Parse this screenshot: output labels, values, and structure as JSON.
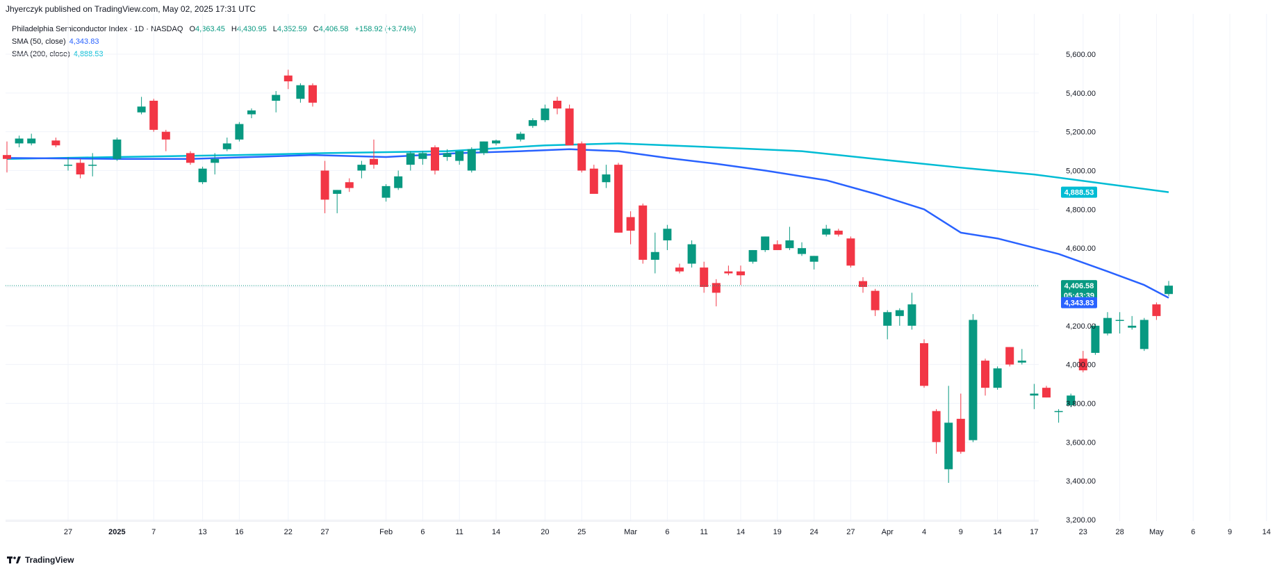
{
  "header": {
    "published": "Jhyerczyk published on TradingView.com, May 02, 2025 17:31 UTC"
  },
  "legend": {
    "symbol": "Philadelphia Semiconductor Index · 1D · NASDAQ",
    "o_label": "O",
    "o_value": "4,363.45",
    "h_label": "H",
    "h_value": "4,430.95",
    "l_label": "L",
    "l_value": "4,352.59",
    "c_label": "C",
    "c_value": "4,406.58",
    "change": "+158.92 (+3.74%)",
    "sma50_label": "SMA (50, close)",
    "sma50_value": "4,343.83",
    "sma200_label": "SMA (200, close)",
    "sma200_value": "4,888.53"
  },
  "footer": {
    "brand": "TradingView",
    "logo_icon": "tradingview-logo-icon"
  },
  "colors": {
    "up": "#089981",
    "down": "#f23645",
    "sma50": "#2962ff",
    "sma200": "#00bcd4",
    "grid": "#f0f3fa"
  },
  "chart_data": {
    "type": "candlestick",
    "title": "Philadelphia Semiconductor Index · 1D · NASDAQ",
    "ylim": [
      3150,
      5750
    ],
    "y_ticks": [
      3200,
      3400,
      3600,
      3800,
      4000,
      4200,
      4400,
      4600,
      4800,
      5000,
      5200,
      5400,
      5600
    ],
    "y_tick_labels": [
      "3,200.00",
      "3,400.00",
      "3,600.00",
      "3,800.00",
      "4,000.00",
      "4,200.00",
      "4,400.00",
      "4,600.00",
      "4,800.00",
      "5,000.00",
      "5,200.00",
      "5,400.00",
      "5,600.00"
    ],
    "x_ticks": [
      {
        "label": "27",
        "date": "2024-12-27"
      },
      {
        "label": "2025",
        "date": "2025-01-02"
      },
      {
        "label": "7",
        "date": "2025-01-07"
      },
      {
        "label": "13",
        "date": "2025-01-13"
      },
      {
        "label": "16",
        "date": "2025-01-16"
      },
      {
        "label": "22",
        "date": "2025-01-22"
      },
      {
        "label": "27",
        "date": "2025-01-27"
      },
      {
        "label": "Feb",
        "date": "2025-02-03"
      },
      {
        "label": "6",
        "date": "2025-02-06"
      },
      {
        "label": "11",
        "date": "2025-02-11"
      },
      {
        "label": "14",
        "date": "2025-02-14"
      },
      {
        "label": "20",
        "date": "2025-02-20"
      },
      {
        "label": "25",
        "date": "2025-02-25"
      },
      {
        "label": "Mar",
        "date": "2025-03-03"
      },
      {
        "label": "6",
        "date": "2025-03-06"
      },
      {
        "label": "11",
        "date": "2025-03-11"
      },
      {
        "label": "14",
        "date": "2025-03-14"
      },
      {
        "label": "19",
        "date": "2025-03-19"
      },
      {
        "label": "24",
        "date": "2025-03-24"
      },
      {
        "label": "27",
        "date": "2025-03-27"
      },
      {
        "label": "Apr",
        "date": "2025-04-01"
      },
      {
        "label": "4",
        "date": "2025-04-04"
      },
      {
        "label": "9",
        "date": "2025-04-09"
      },
      {
        "label": "14",
        "date": "2025-04-14"
      },
      {
        "label": "17",
        "date": "2025-04-17"
      },
      {
        "label": "23",
        "date": "2025-04-23"
      },
      {
        "label": "28",
        "date": "2025-04-28"
      },
      {
        "label": "May",
        "date": "2025-05-01"
      },
      {
        "label": "6",
        "date": "2025-05-06"
      },
      {
        "label": "9",
        "date": "2025-05-09"
      },
      {
        "label": "14",
        "date": "2025-05-14"
      }
    ],
    "candles": [
      {
        "date": "2024-12-20",
        "o": 5080,
        "h": 5150,
        "l": 4990,
        "c": 5060
      },
      {
        "date": "2024-12-23",
        "o": 5140,
        "h": 5180,
        "l": 5120,
        "c": 5165
      },
      {
        "date": "2024-12-24",
        "o": 5140,
        "h": 5190,
        "l": 5130,
        "c": 5165
      },
      {
        "date": "2024-12-26",
        "o": 5155,
        "h": 5170,
        "l": 5120,
        "c": 5130
      },
      {
        "date": "2024-12-27",
        "o": 5030,
        "h": 5070,
        "l": 5000,
        "c": 5030
      },
      {
        "date": "2024-12-30",
        "o": 5040,
        "h": 5060,
        "l": 4960,
        "c": 4980
      },
      {
        "date": "2024-12-31",
        "o": 5030,
        "h": 5090,
        "l": 4970,
        "c": 5030
      },
      {
        "date": "2025-01-02",
        "o": 5060,
        "h": 5170,
        "l": 5050,
        "c": 5160
      },
      {
        "date": "2025-01-06",
        "o": 5300,
        "h": 5380,
        "l": 5290,
        "c": 5330
      },
      {
        "date": "2025-01-07",
        "o": 5360,
        "h": 5370,
        "l": 5200,
        "c": 5210
      },
      {
        "date": "2025-01-08",
        "o": 5200,
        "h": 5210,
        "l": 5100,
        "c": 5160
      },
      {
        "date": "2025-01-10",
        "o": 5090,
        "h": 5100,
        "l": 5030,
        "c": 5040
      },
      {
        "date": "2025-01-13",
        "o": 4940,
        "h": 5020,
        "l": 4930,
        "c": 5010
      },
      {
        "date": "2025-01-14",
        "o": 5040,
        "h": 5090,
        "l": 4980,
        "c": 5060
      },
      {
        "date": "2025-01-15",
        "o": 5110,
        "h": 5170,
        "l": 5100,
        "c": 5140
      },
      {
        "date": "2025-01-16",
        "o": 5160,
        "h": 5250,
        "l": 5150,
        "c": 5240
      },
      {
        "date": "2025-01-17",
        "o": 5290,
        "h": 5320,
        "l": 5270,
        "c": 5310
      },
      {
        "date": "2025-01-21",
        "o": 5360,
        "h": 5410,
        "l": 5300,
        "c": 5390
      },
      {
        "date": "2025-01-22",
        "o": 5490,
        "h": 5520,
        "l": 5420,
        "c": 5460
      },
      {
        "date": "2025-01-23",
        "o": 5370,
        "h": 5450,
        "l": 5350,
        "c": 5440
      },
      {
        "date": "2025-01-24",
        "o": 5440,
        "h": 5450,
        "l": 5330,
        "c": 5350
      },
      {
        "date": "2025-01-27",
        "o": 5000,
        "h": 5050,
        "l": 4780,
        "c": 4850
      },
      {
        "date": "2025-01-28",
        "o": 4880,
        "h": 4900,
        "l": 4780,
        "c": 4900
      },
      {
        "date": "2025-01-29",
        "o": 4940,
        "h": 4960,
        "l": 4890,
        "c": 4910
      },
      {
        "date": "2025-01-30",
        "o": 5000,
        "h": 5050,
        "l": 4960,
        "c": 5030
      },
      {
        "date": "2025-01-31",
        "o": 5060,
        "h": 5160,
        "l": 5010,
        "c": 5030
      },
      {
        "date": "2025-02-03",
        "o": 4860,
        "h": 4930,
        "l": 4840,
        "c": 4920
      },
      {
        "date": "2025-02-04",
        "o": 4910,
        "h": 5000,
        "l": 4900,
        "c": 4970
      },
      {
        "date": "2025-02-05",
        "o": 5030,
        "h": 5100,
        "l": 5000,
        "c": 5090
      },
      {
        "date": "2025-02-06",
        "o": 5060,
        "h": 5100,
        "l": 5030,
        "c": 5090
      },
      {
        "date": "2025-02-07",
        "o": 5120,
        "h": 5130,
        "l": 4980,
        "c": 5000
      },
      {
        "date": "2025-02-10",
        "o": 5070,
        "h": 5110,
        "l": 5050,
        "c": 5090
      },
      {
        "date": "2025-02-11",
        "o": 5050,
        "h": 5100,
        "l": 5030,
        "c": 5100
      },
      {
        "date": "2025-02-12",
        "o": 5000,
        "h": 5120,
        "l": 4990,
        "c": 5110
      },
      {
        "date": "2025-02-13",
        "o": 5090,
        "h": 5150,
        "l": 5080,
        "c": 5150
      },
      {
        "date": "2025-02-14",
        "o": 5140,
        "h": 5160,
        "l": 5130,
        "c": 5155
      },
      {
        "date": "2025-02-18",
        "o": 5160,
        "h": 5200,
        "l": 5150,
        "c": 5190
      },
      {
        "date": "2025-02-19",
        "o": 5230,
        "h": 5270,
        "l": 5220,
        "c": 5260
      },
      {
        "date": "2025-02-20",
        "o": 5260,
        "h": 5340,
        "l": 5250,
        "c": 5320
      },
      {
        "date": "2025-02-21",
        "o": 5360,
        "h": 5380,
        "l": 5290,
        "c": 5320
      },
      {
        "date": "2025-02-24",
        "o": 5320,
        "h": 5340,
        "l": 5130,
        "c": 5130
      },
      {
        "date": "2025-02-25",
        "o": 5140,
        "h": 5150,
        "l": 4990,
        "c": 5000
      },
      {
        "date": "2025-02-26",
        "o": 5010,
        "h": 5030,
        "l": 4880,
        "c": 4880
      },
      {
        "date": "2025-02-27",
        "o": 4940,
        "h": 5030,
        "l": 4910,
        "c": 4980
      },
      {
        "date": "2025-02-28",
        "o": 5030,
        "h": 5040,
        "l": 4680,
        "c": 4680
      },
      {
        "date": "2025-03-03",
        "o": 4760,
        "h": 4790,
        "l": 4620,
        "c": 4690
      },
      {
        "date": "2025-03-04",
        "o": 4820,
        "h": 4830,
        "l": 4520,
        "c": 4540
      },
      {
        "date": "2025-03-05",
        "o": 4540,
        "h": 4680,
        "l": 4470,
        "c": 4580
      },
      {
        "date": "2025-03-06",
        "o": 4640,
        "h": 4720,
        "l": 4590,
        "c": 4700
      },
      {
        "date": "2025-03-07",
        "o": 4500,
        "h": 4520,
        "l": 4470,
        "c": 4480
      },
      {
        "date": "2025-03-10",
        "o": 4520,
        "h": 4640,
        "l": 4500,
        "c": 4620
      },
      {
        "date": "2025-03-11",
        "o": 4500,
        "h": 4530,
        "l": 4370,
        "c": 4400
      },
      {
        "date": "2025-03-12",
        "o": 4420,
        "h": 4440,
        "l": 4300,
        "c": 4370
      },
      {
        "date": "2025-03-13",
        "o": 4480,
        "h": 4510,
        "l": 4460,
        "c": 4470
      },
      {
        "date": "2025-03-14",
        "o": 4480,
        "h": 4510,
        "l": 4410,
        "c": 4460
      },
      {
        "date": "2025-03-17",
        "o": 4530,
        "h": 4590,
        "l": 4520,
        "c": 4590
      },
      {
        "date": "2025-03-18",
        "o": 4590,
        "h": 4660,
        "l": 4580,
        "c": 4660
      },
      {
        "date": "2025-03-19",
        "o": 4620,
        "h": 4640,
        "l": 4590,
        "c": 4590
      },
      {
        "date": "2025-03-20",
        "o": 4600,
        "h": 4710,
        "l": 4590,
        "c": 4640
      },
      {
        "date": "2025-03-21",
        "o": 4570,
        "h": 4630,
        "l": 4560,
        "c": 4600
      },
      {
        "date": "2025-03-24",
        "o": 4530,
        "h": 4560,
        "l": 4490,
        "c": 4560
      },
      {
        "date": "2025-03-25",
        "o": 4670,
        "h": 4720,
        "l": 4660,
        "c": 4700
      },
      {
        "date": "2025-03-26",
        "o": 4690,
        "h": 4700,
        "l": 4660,
        "c": 4670
      },
      {
        "date": "2025-03-27",
        "o": 4650,
        "h": 4660,
        "l": 4500,
        "c": 4510
      },
      {
        "date": "2025-03-28",
        "o": 4430,
        "h": 4450,
        "l": 4370,
        "c": 4400
      },
      {
        "date": "2025-03-31",
        "o": 4380,
        "h": 4390,
        "l": 4250,
        "c": 4280
      },
      {
        "date": "2025-04-01",
        "o": 4200,
        "h": 4280,
        "l": 4130,
        "c": 4270
      },
      {
        "date": "2025-04-02",
        "o": 4250,
        "h": 4290,
        "l": 4200,
        "c": 4280
      },
      {
        "date": "2025-04-03",
        "o": 4200,
        "h": 4370,
        "l": 4180,
        "c": 4310
      },
      {
        "date": "2025-04-04",
        "o": 4110,
        "h": 4130,
        "l": 3880,
        "c": 3890
      },
      {
        "date": "2025-04-07",
        "o": 3760,
        "h": 3770,
        "l": 3540,
        "c": 3600
      },
      {
        "date": "2025-04-08",
        "o": 3460,
        "h": 3890,
        "l": 3390,
        "c": 3700
      },
      {
        "date": "2025-04-09",
        "o": 3720,
        "h": 3850,
        "l": 3540,
        "c": 3550
      },
      {
        "date": "2025-04-10",
        "o": 3610,
        "h": 4260,
        "l": 3600,
        "c": 4230
      },
      {
        "date": "2025-04-11",
        "o": 4020,
        "h": 4030,
        "l": 3840,
        "c": 3880
      },
      {
        "date": "2025-04-14",
        "o": 3880,
        "h": 3990,
        "l": 3870,
        "c": 3980
      },
      {
        "date": "2025-04-15",
        "o": 4090,
        "h": 4090,
        "l": 3990,
        "c": 4000
      },
      {
        "date": "2025-04-16",
        "o": 4010,
        "h": 4080,
        "l": 4000,
        "c": 4020
      },
      {
        "date": "2025-04-17",
        "o": 3840,
        "h": 3900,
        "l": 3770,
        "c": 3850
      },
      {
        "date": "2025-04-18",
        "o": 3880,
        "h": 3890,
        "l": 3830,
        "c": 3830
      },
      {
        "date": "2025-04-21",
        "o": 3760,
        "h": 3770,
        "l": 3700,
        "c": 3760
      },
      {
        "date": "2025-04-22",
        "o": 3790,
        "h": 3850,
        "l": 3780,
        "c": 3840
      },
      {
        "date": "2025-04-23",
        "o": 4030,
        "h": 4070,
        "l": 3960,
        "c": 3970
      },
      {
        "date": "2025-04-24",
        "o": 4060,
        "h": 4210,
        "l": 4050,
        "c": 4200
      },
      {
        "date": "2025-04-25",
        "o": 4160,
        "h": 4270,
        "l": 4150,
        "c": 4240
      },
      {
        "date": "2025-04-28",
        "o": 4230,
        "h": 4270,
        "l": 4160,
        "c": 4230
      },
      {
        "date": "2025-04-29",
        "o": 4190,
        "h": 4250,
        "l": 4180,
        "c": 4200
      },
      {
        "date": "2025-04-30",
        "o": 4080,
        "h": 4240,
        "l": 4070,
        "c": 4230
      },
      {
        "date": "2025-05-01",
        "o": 4310,
        "h": 4320,
        "l": 4230,
        "c": 4250
      },
      {
        "date": "2025-05-02",
        "o": 4363.45,
        "h": 4430.95,
        "l": 4352.59,
        "c": 4406.58
      }
    ],
    "series": [
      {
        "name": "SMA (50, close)",
        "color": "#2962ff",
        "points": [
          [
            "2024-12-20",
            5065
          ],
          [
            "2025-01-02",
            5060
          ],
          [
            "2025-01-10",
            5060
          ],
          [
            "2025-01-17",
            5070
          ],
          [
            "2025-01-24",
            5080
          ],
          [
            "2025-02-03",
            5070
          ],
          [
            "2025-02-11",
            5090
          ],
          [
            "2025-02-18",
            5100
          ],
          [
            "2025-02-24",
            5110
          ],
          [
            "2025-02-28",
            5100
          ],
          [
            "2025-03-06",
            5065
          ],
          [
            "2025-03-12",
            5035
          ],
          [
            "2025-03-18",
            5000
          ],
          [
            "2025-03-25",
            4950
          ],
          [
            "2025-03-31",
            4880
          ],
          [
            "2025-04-04",
            4800
          ],
          [
            "2025-04-09",
            4680
          ],
          [
            "2025-04-14",
            4650
          ],
          [
            "2025-04-21",
            4570
          ],
          [
            "2025-04-25",
            4480
          ],
          [
            "2025-04-30",
            4410
          ],
          [
            "2025-05-02",
            4343.83
          ]
        ]
      },
      {
        "name": "SMA (200, close)",
        "color": "#00bcd4",
        "points": [
          [
            "2024-12-20",
            5060
          ],
          [
            "2025-01-02",
            5070
          ],
          [
            "2025-01-16",
            5080
          ],
          [
            "2025-01-27",
            5090
          ],
          [
            "2025-02-10",
            5100
          ],
          [
            "2025-02-20",
            5130
          ],
          [
            "2025-02-28",
            5140
          ],
          [
            "2025-03-10",
            5125
          ],
          [
            "2025-03-21",
            5100
          ],
          [
            "2025-03-31",
            5060
          ],
          [
            "2025-04-09",
            5015
          ],
          [
            "2025-04-17",
            4980
          ],
          [
            "2025-04-25",
            4930
          ],
          [
            "2025-05-02",
            4888.53
          ]
        ]
      }
    ],
    "last_price_label": "4,406.58",
    "countdown_label": "05:43:39",
    "sma50_tag": "4,343.83",
    "sma200_tag": "4,888.53"
  }
}
